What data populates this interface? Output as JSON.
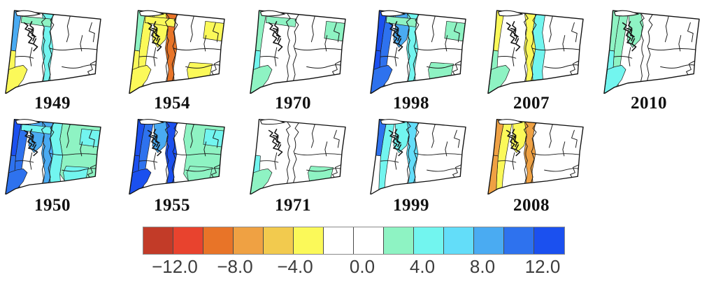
{
  "colorbar": {
    "colors": [
      "#c23b28",
      "#e8432e",
      "#e87428",
      "#efa143",
      "#f2ca4e",
      "#fbf959",
      "#ffffff",
      "#ffffff",
      "#8ef3c3",
      "#72f5ef",
      "#63ddf9",
      "#4aabf2",
      "#2e72ee",
      "#1b50ef"
    ],
    "tick_labels": [
      "−12.0",
      "−8.0",
      "−4.0",
      "0.0",
      "4.0",
      "8.0",
      "12.0"
    ]
  },
  "panels": {
    "row1": [
      {
        "year": "1949",
        "zones": {
          "coast_n": 12,
          "coast_s": 6,
          "west": 0,
          "sound": 0,
          "cascade": 10,
          "eastband": 0,
          "north": 9,
          "ne": 0,
          "east": 0,
          "se": 0,
          "sw": 6
        }
      },
      {
        "year": "1954",
        "zones": {
          "coast_n": 9,
          "coast_s": 6,
          "west": 6,
          "sound": 6,
          "cascade": 3,
          "eastband": 0,
          "north": 6,
          "ne": 6,
          "east": 0,
          "se": 6,
          "sw": 6
        }
      },
      {
        "year": "1970",
        "zones": {
          "coast_n": 9,
          "coast_s": 10,
          "west": 0,
          "sound": 0,
          "cascade": 0,
          "eastband": 0,
          "north": 9,
          "ne": 9,
          "east": 0,
          "se": 0,
          "sw": 9
        }
      },
      {
        "year": "1998",
        "zones": {
          "coast_n": 14,
          "coast_s": 14,
          "west": 13,
          "sound": 12,
          "cascade": 10,
          "eastband": 0,
          "north": 9,
          "ne": 9,
          "east": 0,
          "se": 9,
          "sw": 13
        }
      },
      {
        "year": "2007",
        "zones": {
          "coast_n": 6,
          "coast_s": 9,
          "west": 0,
          "sound": 0,
          "cascade": 6,
          "eastband": 10,
          "north": 0,
          "ne": 0,
          "east": 0,
          "se": 0,
          "sw": 9
        }
      },
      {
        "year": "2010",
        "zones": {
          "coast_n": 9,
          "coast_s": 10,
          "west": 9,
          "sound": 9,
          "cascade": 0,
          "eastband": 0,
          "north": 0,
          "ne": 0,
          "east": 0,
          "se": 0,
          "sw": 10
        }
      }
    ],
    "row2": [
      {
        "year": "1950",
        "zones": {
          "coast_n": 14,
          "coast_s": 13,
          "west": 13,
          "sound": 12,
          "cascade": 12,
          "eastband": 10,
          "north": 10,
          "ne": 10,
          "east": 9,
          "se": 10,
          "sw": 13
        }
      },
      {
        "year": "1955",
        "zones": {
          "coast_n": 14,
          "coast_s": 14,
          "west": 13,
          "sound": 12,
          "cascade": 14,
          "eastband": 0,
          "north": 0,
          "ne": 10,
          "east": 9,
          "se": 9,
          "sw": 14
        }
      },
      {
        "year": "1971",
        "zones": {
          "coast_n": 0,
          "coast_s": 10,
          "west": 0,
          "sound": 0,
          "cascade": 0,
          "eastband": 0,
          "north": 0,
          "ne": 0,
          "east": 0,
          "se": 9,
          "sw": 9
        }
      },
      {
        "year": "1999",
        "zones": {
          "coast_n": 13,
          "coast_s": 0,
          "west": 10,
          "sound": 10,
          "cascade": 11,
          "eastband": 0,
          "north": 0,
          "ne": 0,
          "east": 0,
          "se": 0,
          "sw": 0
        }
      },
      {
        "year": "2008",
        "zones": {
          "coast_n": 4,
          "coast_s": 4,
          "west": 6,
          "sound": 6,
          "cascade": 4,
          "eastband": 0,
          "north": 0,
          "ne": 0,
          "east": 0,
          "se": 0,
          "sw": 0
        }
      }
    ]
  }
}
